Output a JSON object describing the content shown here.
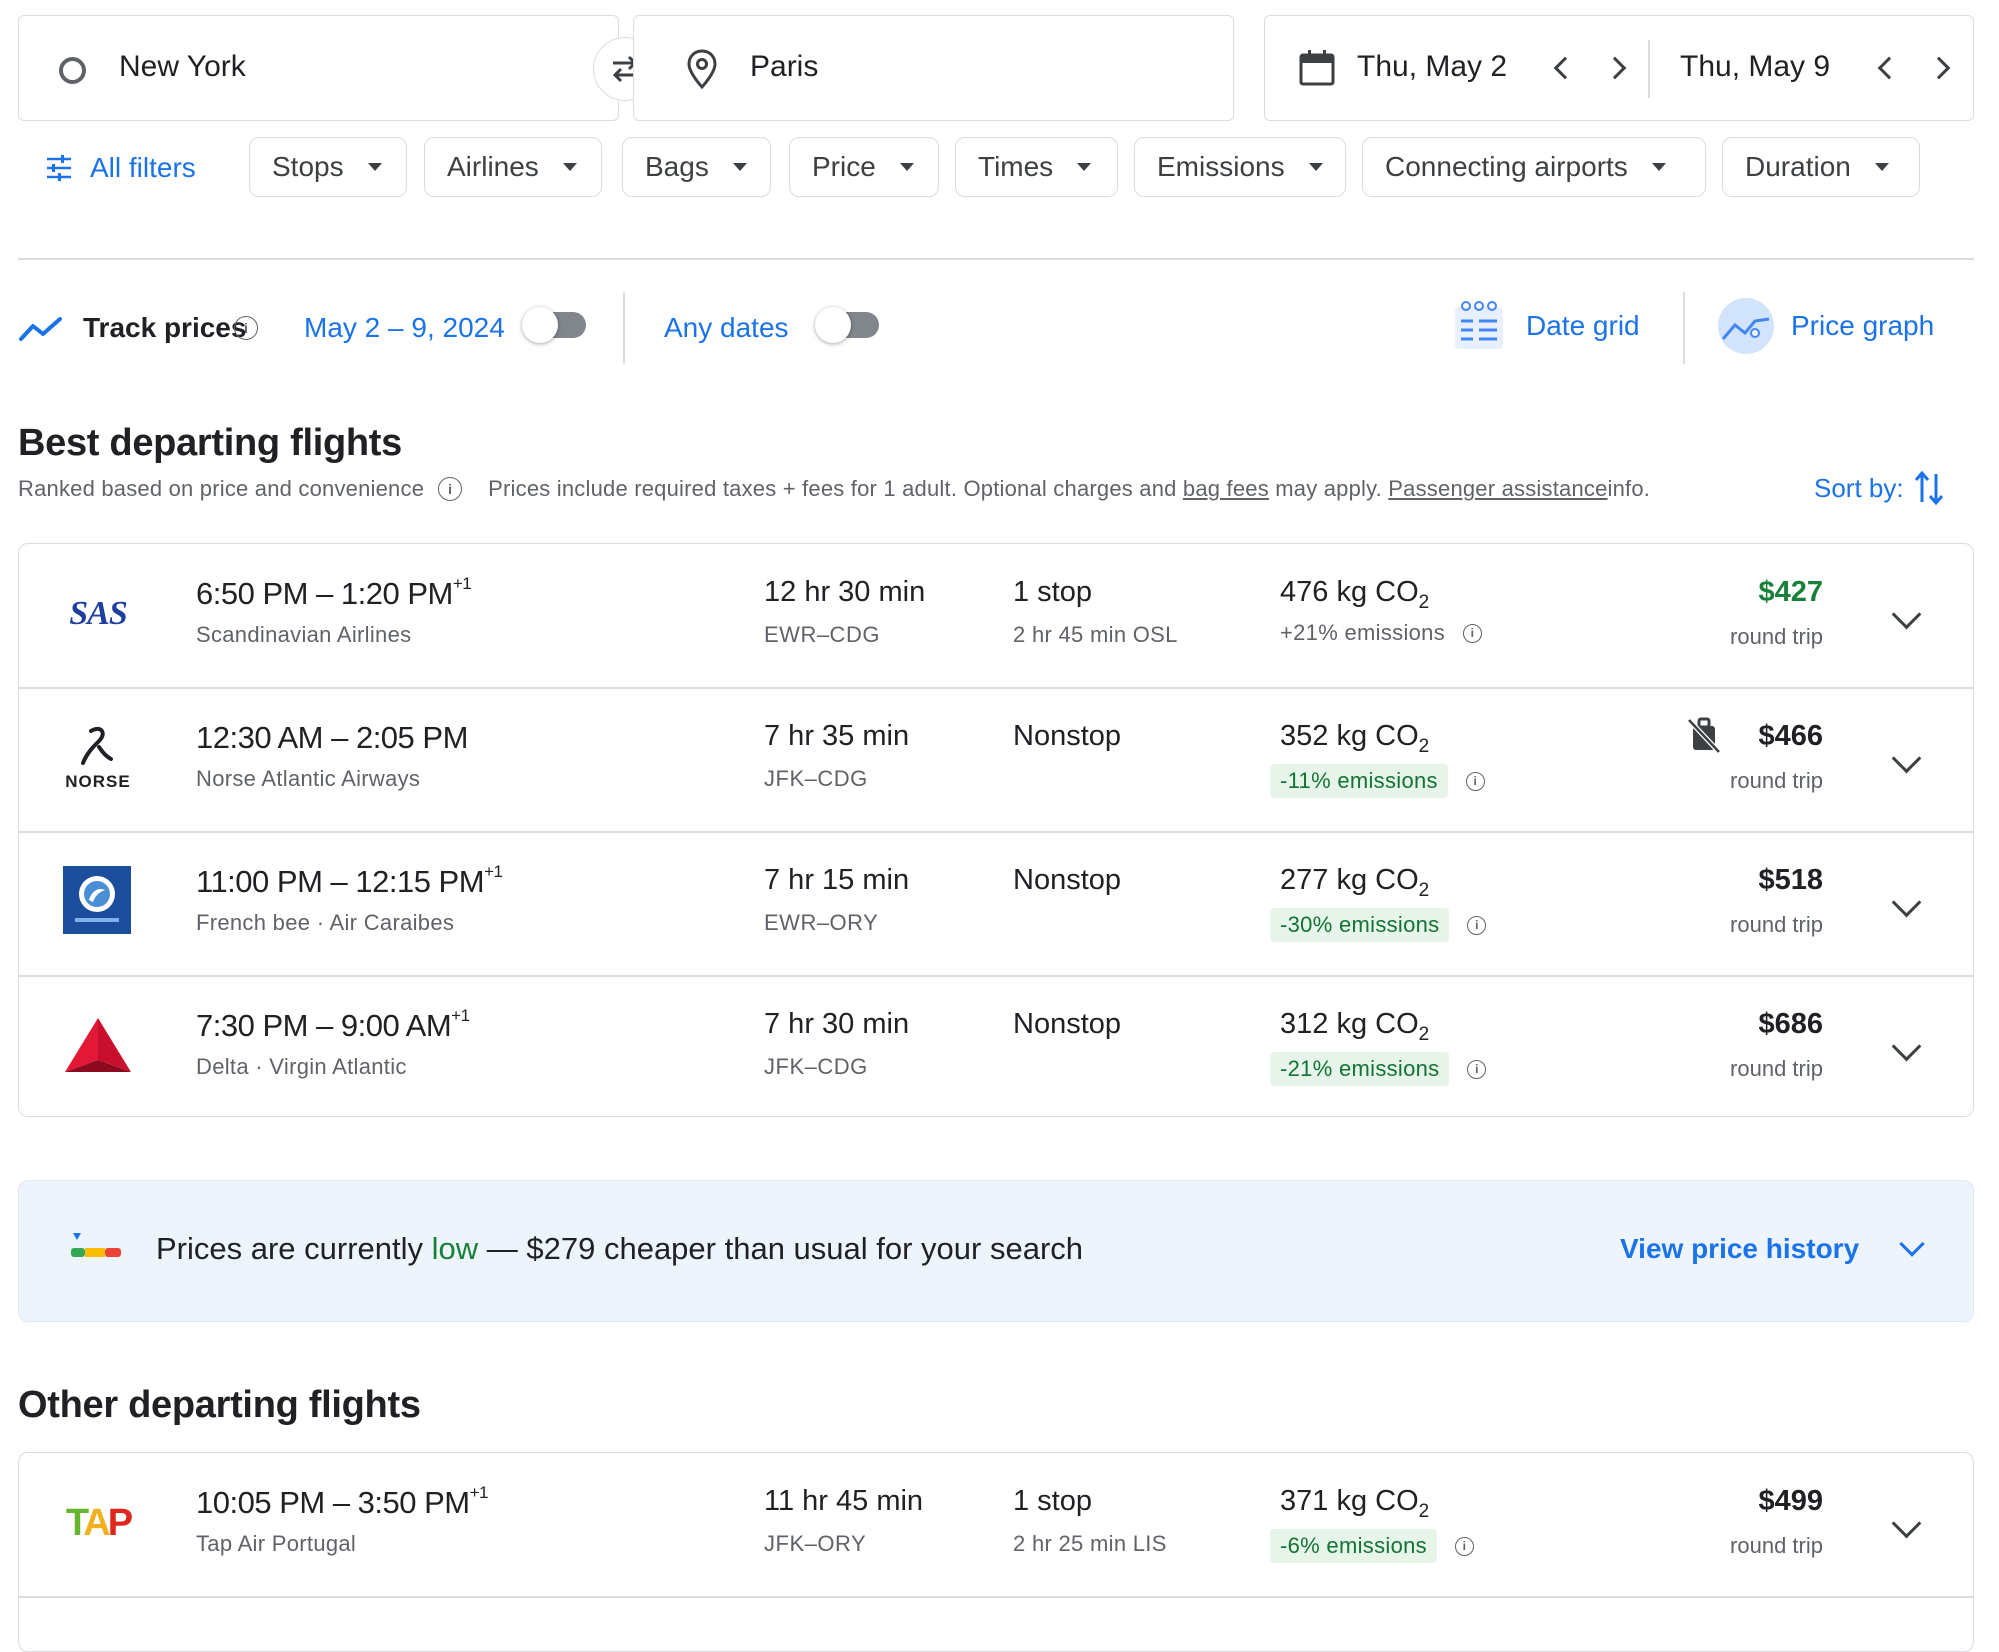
{
  "search": {
    "origin": "New York",
    "destination": "Paris",
    "depart_date": "Thu, May 2",
    "return_date": "Thu, May 9"
  },
  "filters": {
    "all_filters": "All filters",
    "chips": [
      "Stops",
      "Airlines",
      "Bags",
      "Price",
      "Times",
      "Emissions",
      "Connecting airports",
      "Duration"
    ]
  },
  "tracking": {
    "track_prices": "Track prices",
    "date_range": "May 2 – 9, 2024",
    "any_dates": "Any dates",
    "date_grid": "Date grid",
    "price_graph": "Price graph"
  },
  "best": {
    "title": "Best departing flights",
    "ranked_note": "Ranked based on price and convenience",
    "prices_note_1": "Prices include required taxes + fees for 1 adult. Optional charges and ",
    "bag_fees": "bag fees",
    "prices_note_2": " may apply. ",
    "passenger_assistance": "Passenger assistance",
    "prices_note_3": " info.",
    "sort_by": "Sort by:"
  },
  "flights": [
    {
      "airline_logo": "SAS",
      "depart": "6:50 PM",
      "arrive": "1:20 PM",
      "plus_day": "+1",
      "airline": "Scandinavian Airlines",
      "duration": "12 hr 30 min",
      "route": "EWR–CDG",
      "stops": "1 stop",
      "stop_detail": "2 hr 45 min OSL",
      "co2": "476 kg CO",
      "emissions": "+21% emissions",
      "emissions_good": false,
      "price": "$427",
      "price_green": true,
      "price_note": "round trip"
    },
    {
      "airline_logo": "NORSE",
      "depart": "12:30 AM",
      "arrive": "2:05 PM",
      "plus_day": "",
      "airline": "Norse Atlantic Airways",
      "duration": "7 hr 35 min",
      "route": "JFK–CDG",
      "stops": "Nonstop",
      "stop_detail": "",
      "co2": "352 kg CO",
      "emissions": "-11% emissions",
      "emissions_good": true,
      "price": "$466",
      "price_green": false,
      "price_note": "round trip",
      "no_bag_icon": true
    },
    {
      "airline_logo": "Frenchbee",
      "depart": "11:00 PM",
      "arrive": "12:15 PM",
      "plus_day": "+1",
      "airline": "French bee · Air Caraibes",
      "duration": "7 hr 15 min",
      "route": "EWR–ORY",
      "stops": "Nonstop",
      "stop_detail": "",
      "co2": "277 kg CO",
      "emissions": "-30% emissions",
      "emissions_good": true,
      "price": "$518",
      "price_green": false,
      "price_note": "round trip"
    },
    {
      "airline_logo": "Delta",
      "depart": "7:30 PM",
      "arrive": "9:00 AM",
      "plus_day": "+1",
      "airline": "Delta · Virgin Atlantic",
      "duration": "7 hr 30 min",
      "route": "JFK–CDG",
      "stops": "Nonstop",
      "stop_detail": "",
      "co2": "312 kg CO",
      "emissions": "-21% emissions",
      "emissions_good": true,
      "price": "$686",
      "price_green": false,
      "price_note": "round trip"
    }
  ],
  "price_insight": {
    "prefix": "Prices are currently ",
    "level": "low",
    "suffix": " — $279 cheaper than usual for your search",
    "view_history": "View price history"
  },
  "other": {
    "title": "Other departing flights",
    "flights": [
      {
        "airline_logo": "TAP",
        "depart": "10:05 PM",
        "arrive": "3:50 PM",
        "plus_day": "+1",
        "airline": "Tap Air Portugal",
        "duration": "11 hr 45 min",
        "route": "JFK–ORY",
        "stops": "1 stop",
        "stop_detail": "2 hr 25 min LIS",
        "co2": "371 kg CO",
        "emissions": "-6% emissions",
        "emissions_good": true,
        "price": "$499",
        "price_green": false,
        "price_note": "round trip"
      }
    ]
  },
  "colors": {
    "accent": "#1a73e8",
    "good": "#188038",
    "badge_bg": "#e6f4ea",
    "border": "#dadce0",
    "insight_bg": "#eef4fc"
  },
  "icons": [
    "circle-origin-icon",
    "swap-icon",
    "location-pin-icon",
    "calendar-icon",
    "chevron-left-icon",
    "chevron-right-icon",
    "filter-sliders-icon",
    "trend-line-icon",
    "info-icon",
    "date-grid-icon",
    "price-graph-icon",
    "sort-icon",
    "chevron-down-icon",
    "no-bag-icon",
    "price-level-icon"
  ]
}
